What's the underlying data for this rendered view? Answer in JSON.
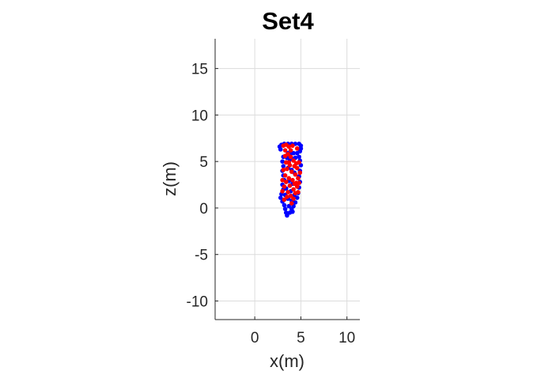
{
  "chart_data": {
    "type": "scatter",
    "title": "Set4",
    "xlabel": "x(m)",
    "ylabel": "z(m)",
    "xlim": [
      -4.3,
      11.4
    ],
    "ylim": [
      -12,
      18.2
    ],
    "xticks": [
      0,
      5,
      10
    ],
    "yticks": [
      -10,
      -5,
      0,
      5,
      10,
      15
    ],
    "grid": true,
    "colors": {
      "blue": "#0000ff",
      "red": "#ff0000",
      "grid": "#dcdcdc",
      "axis": "#262626"
    },
    "series": [
      {
        "color": "blue",
        "values": [
          [
            2.8,
            6.3
          ],
          [
            2.7,
            6.6
          ],
          [
            2.9,
            6.8
          ],
          [
            3.2,
            6.9
          ],
          [
            3.6,
            6.9
          ],
          [
            4.0,
            6.9
          ],
          [
            4.4,
            6.9
          ],
          [
            4.8,
            6.9
          ],
          [
            5.0,
            6.7
          ],
          [
            5.0,
            6.4
          ],
          [
            4.9,
            6.1
          ],
          [
            4.6,
            5.9
          ],
          [
            4.2,
            5.9
          ],
          [
            3.9,
            5.9
          ],
          [
            3.6,
            5.9
          ],
          [
            3.1,
            5.5
          ],
          [
            3.0,
            5.0
          ],
          [
            3.1,
            4.5
          ],
          [
            3.0,
            4.0
          ],
          [
            3.1,
            3.5
          ],
          [
            3.2,
            3.0
          ],
          [
            3.0,
            2.5
          ],
          [
            3.1,
            2.0
          ],
          [
            2.9,
            1.5
          ],
          [
            2.8,
            1.1
          ],
          [
            3.0,
            0.7
          ],
          [
            3.2,
            0.3
          ],
          [
            3.3,
            -0.1
          ],
          [
            3.4,
            -0.5
          ],
          [
            3.5,
            -0.8
          ],
          [
            3.8,
            -0.5
          ],
          [
            4.0,
            -0.1
          ],
          [
            4.2,
            0.2
          ],
          [
            4.4,
            0.6
          ],
          [
            4.6,
            1.1
          ],
          [
            4.7,
            1.6
          ],
          [
            4.8,
            2.2
          ],
          [
            4.9,
            2.8
          ],
          [
            4.8,
            3.4
          ],
          [
            4.9,
            4.0
          ],
          [
            5.0,
            4.6
          ],
          [
            4.9,
            5.1
          ],
          [
            4.8,
            5.5
          ],
          [
            3.5,
            5.4
          ],
          [
            3.8,
            5.2
          ],
          [
            4.1,
            5.3
          ],
          [
            4.4,
            5.4
          ],
          [
            3.6,
            4.3
          ],
          [
            4.0,
            4.1
          ],
          [
            4.3,
            3.8
          ],
          [
            3.7,
            2.9
          ],
          [
            4.1,
            2.6
          ],
          [
            3.4,
            2.1
          ],
          [
            3.9,
            1.8
          ],
          [
            4.3,
            1.4
          ],
          [
            3.6,
            1.0
          ],
          [
            4.0,
            0.8
          ],
          [
            3.3,
            1.4
          ],
          [
            3.7,
            0.2
          ],
          [
            4.1,
            -0.4
          ]
        ]
      },
      {
        "color": "red",
        "values": [
          [
            3.1,
            6.7
          ],
          [
            3.4,
            6.8
          ],
          [
            3.7,
            6.6
          ],
          [
            4.1,
            6.7
          ],
          [
            3.3,
            6.2
          ],
          [
            3.6,
            5.8
          ],
          [
            3.9,
            5.5
          ],
          [
            4.2,
            5.1
          ],
          [
            4.5,
            4.8
          ],
          [
            3.4,
            4.9
          ],
          [
            3.8,
            4.6
          ],
          [
            4.6,
            4.3
          ],
          [
            3.5,
            4.2
          ],
          [
            4.0,
            3.9
          ],
          [
            4.4,
            3.6
          ],
          [
            4.7,
            3.2
          ],
          [
            3.3,
            3.5
          ],
          [
            3.7,
            3.2
          ],
          [
            4.1,
            3.0
          ],
          [
            4.5,
            2.7
          ],
          [
            3.4,
            2.8
          ],
          [
            3.8,
            2.4
          ],
          [
            4.6,
            2.3
          ],
          [
            3.2,
            2.3
          ],
          [
            4.2,
            2.0
          ],
          [
            3.6,
            1.7
          ],
          [
            4.4,
            1.6
          ],
          [
            3.0,
            1.8
          ],
          [
            3.9,
            1.3
          ],
          [
            4.7,
            1.7
          ],
          [
            3.5,
            1.2
          ],
          [
            4.2,
            1.0
          ],
          [
            3.2,
            0.9
          ],
          [
            4.0,
            0.5
          ],
          [
            4.8,
            4.9
          ],
          [
            4.9,
            3.8
          ],
          [
            3.1,
            4.1
          ],
          [
            3.0,
            3.0
          ],
          [
            4.3,
            4.5
          ],
          [
            3.9,
            6.2
          ],
          [
            4.6,
            6.4
          ],
          [
            3.3,
            5.6
          ],
          [
            4.3,
            2.6
          ],
          [
            3.7,
            4.9
          ],
          [
            4.8,
            2.7
          ]
        ]
      }
    ]
  }
}
